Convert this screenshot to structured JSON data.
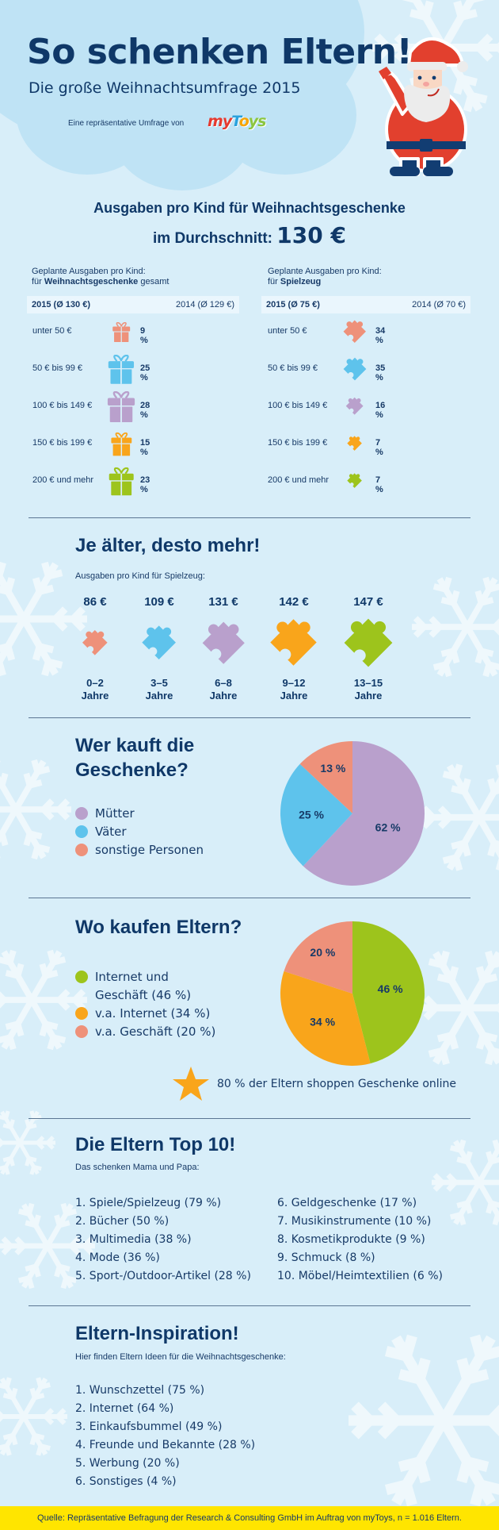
{
  "header": {
    "title": "So schenken Eltern!",
    "subtitle": "Die große Weihnachtsumfrage 2015",
    "byline": "Eine repräsentative Umfrage von",
    "brand": [
      "m",
      "y",
      "T",
      "o",
      "y",
      "s"
    ],
    "brand_colors": [
      "#e53a2f",
      "#e53a2f",
      "#2aa2dd",
      "#f7a400",
      "#8cc63f",
      "#8cc63f"
    ]
  },
  "spending": {
    "headline": "Ausgaben pro Kind für Weihnachtsgeschenke",
    "avg_prefix": "im Durchschnitt:",
    "avg_value": "130 €",
    "gifts": {
      "intro_line1": "Geplante Ausgaben pro Kind:",
      "intro_prefix": "für ",
      "intro_bold": "Weihnachtsgeschenke",
      "intro_suffix": " gesamt",
      "year_current": "2015 (Ø 130 €)",
      "year_previous": "2014 (Ø 129 €)",
      "rows": [
        {
          "label": "unter 50 €",
          "pct": "9 %",
          "value": 9,
          "color": "#ee917a"
        },
        {
          "label": "50 € bis 99 €",
          "pct": "25 %",
          "value": 25,
          "color": "#5ec3ec"
        },
        {
          "label": "100 € bis 149 €",
          "pct": "28 %",
          "value": 28,
          "color": "#b9a0cc"
        },
        {
          "label": "150 € bis 199 €",
          "pct": "15 %",
          "value": 15,
          "color": "#f9a51b"
        },
        {
          "label": "200 € und mehr",
          "pct": "23 %",
          "value": 23,
          "color": "#9dc41c"
        }
      ]
    },
    "toys": {
      "intro_line1": "Geplante Ausgaben pro Kind:",
      "intro_prefix": "für ",
      "intro_bold": "Spielzeug",
      "intro_suffix": "",
      "year_current": "2015 (Ø 75 €)",
      "year_previous": "2014 (Ø 70 €)",
      "rows": [
        {
          "label": "unter 50 €",
          "pct": "34 %",
          "value": 34,
          "color": "#ee917a"
        },
        {
          "label": "50 € bis 99 €",
          "pct": "35 %",
          "value": 35,
          "color": "#5ec3ec"
        },
        {
          "label": "100 € bis 149 €",
          "pct": "16 %",
          "value": 16,
          "color": "#b9a0cc"
        },
        {
          "label": "150 € bis 199 €",
          "pct": "7 %",
          "value": 7,
          "color": "#f9a51b"
        },
        {
          "label": "200 € und mehr",
          "pct": "7 %",
          "value": 7,
          "color": "#9dc41c"
        }
      ]
    }
  },
  "age": {
    "title": "Je älter, desto mehr!",
    "subtitle": "Ausgaben pro Kind für Spielzeug:",
    "items": [
      {
        "value": "86 €",
        "amount": 86,
        "range": "0–2",
        "unit": "Jahre",
        "color": "#ee917a"
      },
      {
        "value": "109 €",
        "amount": 109,
        "range": "3–5",
        "unit": "Jahre",
        "color": "#5ec3ec"
      },
      {
        "value": "131 €",
        "amount": 131,
        "range": "6–8",
        "unit": "Jahre",
        "color": "#b9a0cc"
      },
      {
        "value": "142 €",
        "amount": 142,
        "range": "9–12",
        "unit": "Jahre",
        "color": "#f9a51b"
      },
      {
        "value": "147 €",
        "amount": 147,
        "range": "13–15",
        "unit": "Jahre",
        "color": "#9dc41c"
      }
    ]
  },
  "buyers": {
    "title_line1": "Wer kauft die",
    "title_line2": "Geschenke?",
    "legend": [
      {
        "label": "Mütter",
        "color": "#b9a0cc"
      },
      {
        "label": "Väter",
        "color": "#5ec3ec"
      },
      {
        "label": "sonstige Personen",
        "color": "#ee917a"
      }
    ]
  },
  "shops": {
    "title": "Wo kaufen Eltern?",
    "legend": [
      {
        "label": "Internet und",
        "label2": "Geschäft (46 %)",
        "color": "#9dc41c"
      },
      {
        "label": "v.a. Internet (34 %)",
        "label2": "",
        "color": "#f9a51b"
      },
      {
        "label": "v.a. Geschäft (20 %)",
        "label2": "",
        "color": "#ee917a"
      }
    ],
    "callout": "80 % der Eltern shoppen Geschenke online"
  },
  "chart_data": [
    {
      "type": "pie",
      "title": "Wer kauft die Geschenke?",
      "categories": [
        "Mütter",
        "Väter",
        "sonstige Personen"
      ],
      "values": [
        62,
        25,
        13
      ],
      "labels": [
        "62 %",
        "25 %",
        "13 %"
      ],
      "colors": [
        "#b9a0cc",
        "#5ec3ec",
        "#ee917a"
      ],
      "legend": "left"
    },
    {
      "type": "pie",
      "title": "Wo kaufen Eltern?",
      "categories": [
        "Internet und Geschäft",
        "v.a. Internet",
        "v.a. Geschäft"
      ],
      "values": [
        46,
        34,
        20
      ],
      "labels": [
        "46 %",
        "34 %",
        "20 %"
      ],
      "colors": [
        "#9dc41c",
        "#f9a51b",
        "#ee917a"
      ],
      "legend": "left"
    }
  ],
  "top10": {
    "title": "Die Eltern Top 10!",
    "subtitle": "Das schenken Mama und Papa:",
    "left": [
      "1. Spiele/Spielzeug (79 %)",
      "2. Bücher (50 %)",
      "3. Multimedia (38 %)",
      "4. Mode (36 %)",
      "5. Sport-/Outdoor-Artikel (28 %)"
    ],
    "right": [
      "6. Geldgeschenke (17 %)",
      "7. Musikinstrumente (10 %)",
      "8. Kosmetikprodukte (9 %)",
      "9. Schmuck (8 %)",
      "10. Möbel/Heimtextilien (6 %)"
    ]
  },
  "inspiration": {
    "title": "Eltern-Inspiration!",
    "subtitle": "Hier finden Eltern Ideen für die Weihnachtsgeschenke:",
    "items": [
      "1. Wunschzettel (75 %)",
      "2. Internet (64 %)",
      "3. Einkaufsbummel (49 %)",
      "4. Freunde und Bekannte (28 %)",
      "5. Werbung (20 %)",
      "6. Sonstiges (4 %)"
    ]
  },
  "footer": {
    "source": "Quelle: Repräsentative Befragung der Research & Consulting GmbH im Auftrag von myToys, n = 1.016 Eltern."
  }
}
